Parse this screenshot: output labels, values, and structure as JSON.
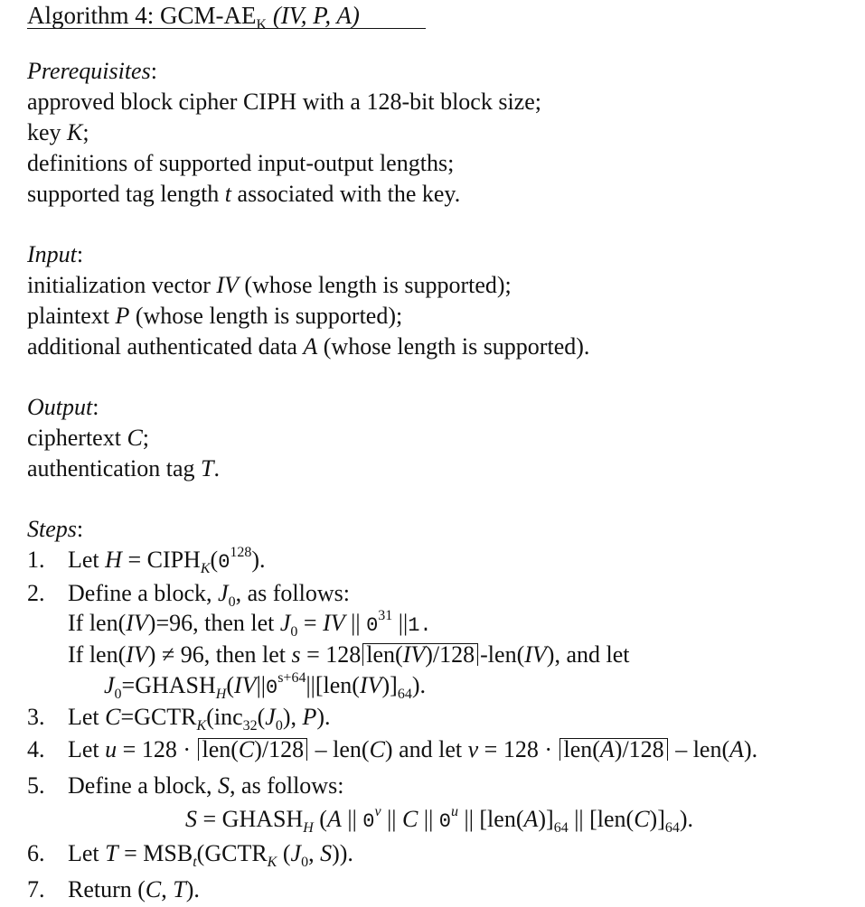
{
  "header": {
    "algo_prefix": "Algorithm 4:  GCM-AE",
    "algo_sub": "K",
    "algo_args": " (IV, P, A)"
  },
  "prerequisites": {
    "label": "Prerequisites",
    "colon": ":",
    "line1": "approved block cipher CIPH with a 128-bit block size;",
    "line2_a": "key ",
    "line2_b": "K",
    "line2_c": ";",
    "line3": "definitions of supported input-output lengths;",
    "line4_a": "supported tag length ",
    "line4_b": "t",
    "line4_c": " associated with the key."
  },
  "input": {
    "label": "Input",
    "colon": ":",
    "line1_a": "initialization vector ",
    "line1_b": "IV",
    "line1_c": " (whose length is supported);",
    "line2_a": "plaintext ",
    "line2_b": "P",
    "line2_c": " (whose length is supported);",
    "line3_a": "additional authenticated data ",
    "line3_b": "A",
    "line3_c": " (whose length is supported)."
  },
  "output": {
    "label": "Output",
    "colon": ":",
    "line1_a": "ciphertext ",
    "line1_b": "C",
    "line1_c": ";",
    "line2_a": "authentication tag ",
    "line2_b": "T",
    "line2_c": "."
  },
  "steps": {
    "label": "Steps",
    "colon": ":",
    "s1_num": "1.",
    "s1_a": "Let ",
    "s1_b": "H",
    "s1_c": " = CIPH",
    "s1_d": "K",
    "s1_e": "(",
    "s1_f": "0",
    "s1_g": "128",
    "s1_h": ").",
    "s2_num": "2.",
    "s2_a": "Define a block, ",
    "s2_b": "J",
    "s2_c": "0",
    "s2_d": ", as follows:",
    "s2_l2_a": "If len(",
    "s2_l2_b": "IV",
    "s2_l2_c": ")=96, then let ",
    "s2_l2_d": "J",
    "s2_l2_e": "0",
    "s2_l2_f": " = ",
    "s2_l2_g": "IV",
    "s2_l2_h": " || ",
    "s2_l2_i": "0",
    "s2_l2_j": "31",
    "s2_l2_k": " ||",
    "s2_l2_l": "1.",
    "s2_l3_a": "If len(",
    "s2_l3_b": "IV",
    "s2_l3_c": ") ≠ 96, then let ",
    "s2_l3_d": "s",
    "s2_l3_e": " = 128",
    "s2_l3_f": "len(",
    "s2_l3_g": "IV",
    "s2_l3_h": ")/128",
    "s2_l3_i": "-len(",
    "s2_l3_j": "IV",
    "s2_l3_k": "), and let",
    "s2_l4_a": "J",
    "s2_l4_b": "0",
    "s2_l4_c": "=GHASH",
    "s2_l4_d": "H",
    "s2_l4_e": "(",
    "s2_l4_f": "IV",
    "s2_l4_g": "||",
    "s2_l4_h": "0",
    "s2_l4_i": "s+64",
    "s2_l4_j": "||[len(",
    "s2_l4_k": "IV",
    "s2_l4_l": ")]",
    "s2_l4_m": "64",
    "s2_l4_n": ").",
    "s3_num": "3.",
    "s3_a": "Let ",
    "s3_b": "C",
    "s3_c": "=GCTR",
    "s3_d": "K",
    "s3_e": "(inc",
    "s3_f": "32",
    "s3_g": "(",
    "s3_h": "J",
    "s3_i": "0",
    "s3_j": "), ",
    "s3_k": "P",
    "s3_l": ").",
    "s4_num": "4.",
    "s4_a": "Let ",
    "s4_b": "u",
    "s4_c": " = 128 · ",
    "s4_d": "len(",
    "s4_e": "C",
    "s4_f": ")/128",
    "s4_g": " – len(",
    "s4_h": "C",
    "s4_i": ")",
    "s4_j": " and let ",
    "s4_k": "v",
    "s4_l": " = 128 · ",
    "s4_m": "len(",
    "s4_n": "A",
    "s4_o": ")/128",
    "s4_p": " – len(",
    "s4_q": "A",
    "s4_r": ").",
    "s5_num": "5.",
    "s5_a": "Define a block, ",
    "s5_b": "S",
    "s5_c": ", as follows:",
    "s5_l2_a": "S",
    "s5_l2_b": " = GHASH",
    "s5_l2_c": "H",
    "s5_l2_d": " (",
    "s5_l2_e": "A",
    "s5_l2_f": " || ",
    "s5_l2_g": "0",
    "s5_l2_h": "v",
    "s5_l2_i": " || ",
    "s5_l2_j": "C",
    "s5_l2_k": " || ",
    "s5_l2_l": "0",
    "s5_l2_m": "u",
    "s5_l2_n": " || [len(",
    "s5_l2_o": "A",
    "s5_l2_p": ")]",
    "s5_l2_q": "64",
    "s5_l2_r": " || [len(",
    "s5_l2_s": "C",
    "s5_l2_t": ")]",
    "s5_l2_u": "64",
    "s5_l2_v": ").",
    "s6_num": "6.",
    "s6_a": "Let ",
    "s6_b": "T",
    "s6_c": " = MSB",
    "s6_d": "t",
    "s6_e": "(GCTR",
    "s6_f": "K",
    "s6_g": " (",
    "s6_h": "J",
    "s6_i": "0",
    "s6_j": ", ",
    "s6_k": "S",
    "s6_l": ")).",
    "s7_num": "7.",
    "s7_a": "Return (",
    "s7_b": "C",
    "s7_c": ", ",
    "s7_d": "T",
    "s7_e": ")."
  }
}
